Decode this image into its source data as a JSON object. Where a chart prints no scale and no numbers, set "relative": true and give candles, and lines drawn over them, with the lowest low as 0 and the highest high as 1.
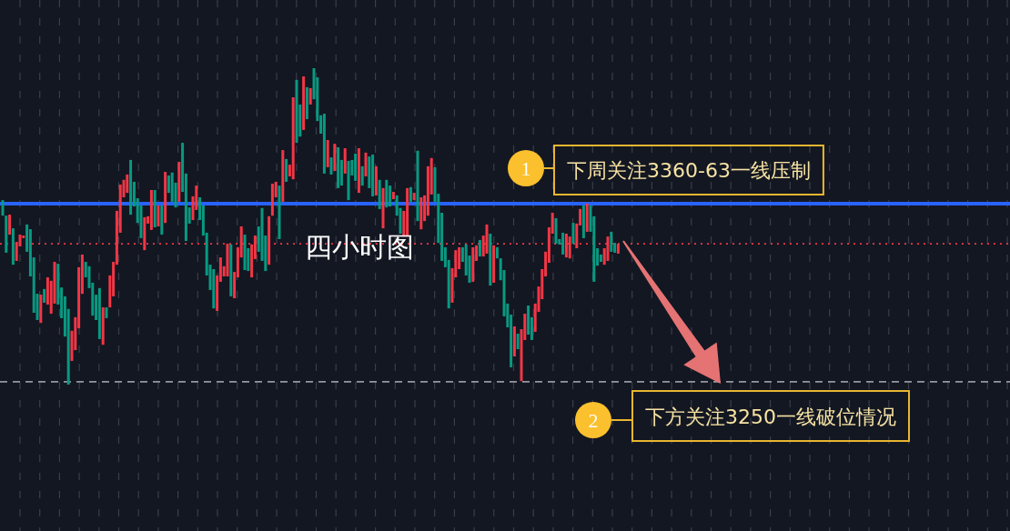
{
  "chart_data": {
    "type": "candlestick",
    "title": "四小时图",
    "relative": true,
    "categories": [
      null,
      null,
      null,
      null,
      null,
      null,
      null,
      null,
      null,
      null,
      null,
      null,
      null,
      null,
      null,
      null,
      null,
      null,
      null,
      null,
      null,
      null,
      null,
      null,
      null,
      null,
      null,
      null,
      null,
      null,
      null,
      null,
      null,
      null,
      null,
      null,
      null,
      null,
      null,
      null,
      null,
      null,
      null,
      null,
      null,
      null,
      null,
      null,
      null,
      null,
      null,
      null,
      null,
      null,
      null,
      null,
      null,
      null,
      null,
      null,
      null,
      null,
      null,
      null,
      null,
      null,
      null,
      null,
      null,
      null,
      null,
      null,
      null,
      null,
      null,
      null,
      null,
      null,
      null,
      null,
      null,
      null,
      null,
      null,
      null,
      null,
      null,
      null,
      null,
      null,
      null,
      null,
      null,
      null,
      null,
      null,
      null,
      null,
      null,
      null,
      null,
      null,
      null,
      null,
      null,
      null,
      null,
      null,
      null,
      null,
      null,
      null,
      null,
      null,
      null,
      null,
      null,
      null,
      null,
      null,
      null,
      null,
      null,
      null,
      null,
      null,
      null,
      null,
      null,
      null,
      null,
      null,
      null,
      null,
      null,
      null,
      null,
      null,
      null,
      null,
      null,
      null,
      null,
      null,
      null,
      null,
      null,
      null,
      null,
      null,
      null,
      null,
      null,
      null,
      null,
      null,
      null,
      null,
      null,
      null,
      null,
      null,
      null,
      null,
      null,
      null,
      null,
      null,
      null,
      null,
      null,
      null,
      null,
      null,
      null,
      null,
      null,
      null,
      null
    ],
    "ohlc": [
      [
        0.583,
        0.583,
        0.534,
        0.534
      ],
      [
        0.534,
        0.534,
        0.417,
        0.417
      ],
      [
        0.474,
        0.537,
        0.474,
        0.537
      ],
      [
        0.494,
        0.494,
        0.379,
        0.379
      ],
      [
        0.391,
        0.451,
        0.391,
        0.451
      ],
      [
        0.437,
        0.474,
        0.437,
        0.474
      ],
      [
        0.463,
        0.471,
        0.463,
        0.471
      ],
      [
        0.506,
        0.506,
        0.42,
        0.42
      ],
      [
        0.491,
        0.491,
        0.342,
        0.342
      ],
      [
        0.402,
        0.402,
        0.227,
        0.227
      ],
      [
        0.287,
        0.287,
        0.204,
        0.204
      ],
      [
        0.195,
        0.284,
        0.195,
        0.284
      ],
      [
        0.302,
        0.302,
        0.259,
        0.259
      ],
      [
        0.253,
        0.339,
        0.253,
        0.339
      ],
      [
        0.224,
        0.328,
        0.224,
        0.328
      ],
      [
        0.256,
        0.388,
        0.256,
        0.388
      ],
      [
        0.382,
        0.382,
        0.253,
        0.253
      ],
      [
        0.307,
        0.307,
        0.21,
        0.21
      ],
      [
        0.279,
        0.279,
        0.152,
        0.152
      ],
      [
        0.239,
        0.239,
        0,
        0
      ],
      [
        0.075,
        0.17,
        0.075,
        0.17
      ],
      [
        0.109,
        0.213,
        0.109,
        0.213
      ],
      [
        0.178,
        0.371,
        0.178,
        0.371
      ],
      [
        0.287,
        0.411,
        0.287,
        0.411
      ],
      [
        0.388,
        0.388,
        0.339,
        0.339
      ],
      [
        0.374,
        0.374,
        0.305,
        0.305
      ],
      [
        0.322,
        0.322,
        0.218,
        0.218
      ],
      [
        0.284,
        0.284,
        0.204,
        0.204
      ],
      [
        0.305,
        0.305,
        0.144,
        0.144
      ],
      [
        0.126,
        0.244,
        0.126,
        0.244
      ],
      [
        0.244,
        0.244,
        0.21,
        0.21
      ],
      [
        0.244,
        0.345,
        0.244,
        0.345
      ],
      [
        0.279,
        0.388,
        0.279,
        0.388
      ],
      [
        0.379,
        0.549,
        0.379,
        0.549
      ],
      [
        0.48,
        0.632,
        0.48,
        0.632
      ],
      [
        0.592,
        0.647,
        0.592,
        0.647
      ],
      [
        0.606,
        0.664,
        0.606,
        0.664
      ],
      [
        0.71,
        0.71,
        0.537,
        0.537
      ],
      [
        0.641,
        0.641,
        0.563,
        0.563
      ],
      [
        0.589,
        0.589,
        0.511,
        0.511
      ],
      [
        0.566,
        0.566,
        0.463,
        0.463
      ],
      [
        0.425,
        0.529,
        0.425,
        0.529
      ],
      [
        0.509,
        0.532,
        0.509,
        0.532
      ],
      [
        0.489,
        0.615,
        0.489,
        0.615
      ],
      [
        0.615,
        0.615,
        0.497,
        0.497
      ],
      [
        0.5,
        0.566,
        0.5,
        0.566
      ],
      [
        0.566,
        0.566,
        0.474,
        0.474
      ],
      [
        0.511,
        0.672,
        0.511,
        0.672
      ],
      [
        0.661,
        0.661,
        0.606,
        0.606
      ],
      [
        0.67,
        0.67,
        0.578,
        0.578
      ],
      [
        0.638,
        0.638,
        0.56,
        0.56
      ],
      [
        0.578,
        0.704,
        0.578,
        0.704
      ],
      [
        0.764,
        0.764,
        0.609,
        0.609
      ],
      [
        0.667,
        0.667,
        0.454,
        0.454
      ],
      [
        0.56,
        0.56,
        0.509,
        0.509
      ],
      [
        0.52,
        0.595,
        0.52,
        0.595
      ],
      [
        0.552,
        0.629,
        0.552,
        0.629
      ],
      [
        0.592,
        0.592,
        0.52,
        0.52
      ],
      [
        0.566,
        0.566,
        0.471,
        0.471
      ],
      [
        0.48,
        0.48,
        0.345,
        0.345
      ],
      [
        0.379,
        0.379,
        0.299,
        0.299
      ],
      [
        0.365,
        0.365,
        0.241,
        0.241
      ],
      [
        0.233,
        0.345,
        0.233,
        0.345
      ],
      [
        0.325,
        0.402,
        0.325,
        0.402
      ],
      [
        0.342,
        0.374,
        0.342,
        0.374
      ],
      [
        0.342,
        0.445,
        0.342,
        0.445
      ],
      [
        0.443,
        0.443,
        0.279,
        0.279
      ],
      [
        0.273,
        0.356,
        0.273,
        0.356
      ],
      [
        0.339,
        0.434,
        0.339,
        0.434
      ],
      [
        0.402,
        0.5,
        0.402,
        0.5
      ],
      [
        0.474,
        0.474,
        0.362,
        0.362
      ],
      [
        0.431,
        0.431,
        0.359,
        0.359
      ],
      [
        0.339,
        0.443,
        0.339,
        0.443
      ],
      [
        0.397,
        0.471,
        0.397,
        0.471
      ],
      [
        0.5,
        0.5,
        0.42,
        0.42
      ],
      [
        0.558,
        0.558,
        0.391,
        0.391
      ],
      [
        0.471,
        0.471,
        0.359,
        0.359
      ],
      [
        0.379,
        0.532,
        0.379,
        0.532
      ],
      [
        0.534,
        0.635,
        0.534,
        0.635
      ],
      [
        0.592,
        0.641,
        0.592,
        0.641
      ],
      [
        0.629,
        0.629,
        0.46,
        0.46
      ],
      [
        0.578,
        0.741,
        0.578,
        0.741
      ],
      [
        0.713,
        0.713,
        0.641,
        0.641
      ],
      [
        0.658,
        0.695,
        0.658,
        0.695
      ],
      [
        0.649,
        0.908,
        0.649,
        0.908
      ],
      [
        0.963,
        0.963,
        0.764,
        0.764
      ],
      [
        0.885,
        0.885,
        0.784,
        0.784
      ],
      [
        0.805,
        0.974,
        0.805,
        0.974
      ],
      [
        0.94,
        0.94,
        0.839,
        0.839
      ],
      [
        0.885,
        0.937,
        0.885,
        0.937
      ],
      [
        1,
        1,
        0.902,
        0.902
      ],
      [
        0.971,
        0.971,
        0.833,
        0.833
      ],
      [
        0.851,
        0.851,
        0.793,
        0.793
      ],
      [
        0.856,
        0.856,
        0.667,
        0.667
      ],
      [
        0.687,
        0.773,
        0.687,
        0.773
      ],
      [
        0.718,
        0.718,
        0.664,
        0.664
      ],
      [
        0.675,
        0.761,
        0.675,
        0.761
      ],
      [
        0.75,
        0.75,
        0.621,
        0.621
      ],
      [
        0.71,
        0.71,
        0.629,
        0.629
      ],
      [
        0.667,
        0.747,
        0.667,
        0.747
      ],
      [
        0.707,
        0.707,
        0.583,
        0.583
      ],
      [
        0.71,
        0.71,
        0.661,
        0.661
      ],
      [
        0.73,
        0.73,
        0.644,
        0.644
      ],
      [
        0.606,
        0.747,
        0.606,
        0.747
      ],
      [
        0.69,
        0.69,
        0.629,
        0.629
      ],
      [
        0.658,
        0.733,
        0.658,
        0.733
      ],
      [
        0.721,
        0.721,
        0.621,
        0.621
      ],
      [
        0.727,
        0.727,
        0.595,
        0.595
      ],
      [
        0.598,
        0.69,
        0.598,
        0.69
      ],
      [
        0.647,
        0.647,
        0.555,
        0.555
      ],
      [
        0.494,
        0.621,
        0.494,
        0.621
      ],
      [
        0.647,
        0.647,
        0.56,
        0.56
      ],
      [
        0.629,
        0.629,
        0.563,
        0.563
      ],
      [
        0.586,
        0.609,
        0.586,
        0.609
      ],
      [
        0.598,
        0.598,
        0.534,
        0.534
      ],
      [
        0.558,
        0.558,
        0.477,
        0.477
      ],
      [
        0.468,
        0.549,
        0.468,
        0.549
      ],
      [
        0.468,
        0.621,
        0.468,
        0.621
      ],
      [
        0.624,
        0.624,
        0.578,
        0.578
      ],
      [
        0.583,
        0.606,
        0.583,
        0.606
      ],
      [
        0.739,
        0.739,
        0.517,
        0.517
      ],
      [
        0.491,
        0.592,
        0.491,
        0.592
      ],
      [
        0.517,
        0.598,
        0.517,
        0.598
      ],
      [
        0.534,
        0.69,
        0.534,
        0.69
      ],
      [
        0.601,
        0.716,
        0.601,
        0.716
      ],
      [
        0.687,
        0.687,
        0.578,
        0.578
      ],
      [
        0.603,
        0.603,
        0.448,
        0.448
      ],
      [
        0.543,
        0.543,
        0.391,
        0.391
      ],
      [
        0.434,
        0.434,
        0.371,
        0.371
      ],
      [
        0.394,
        0.394,
        0.241,
        0.241
      ],
      [
        0.259,
        0.368,
        0.259,
        0.368
      ],
      [
        0.339,
        0.425,
        0.339,
        0.425
      ],
      [
        0.365,
        0.434,
        0.365,
        0.434
      ],
      [
        0.434,
        0.434,
        0.388,
        0.388
      ],
      [
        0.443,
        0.443,
        0.345,
        0.345
      ],
      [
        0.408,
        0.408,
        0.322,
        0.322
      ],
      [
        0.325,
        0.434,
        0.325,
        0.434
      ],
      [
        0.391,
        0.44,
        0.391,
        0.44
      ],
      [
        0.457,
        0.457,
        0.405,
        0.405
      ],
      [
        0.405,
        0.471,
        0.405,
        0.471
      ],
      [
        0.414,
        0.506,
        0.414,
        0.506
      ],
      [
        0.477,
        0.477,
        0.313,
        0.313
      ],
      [
        0.322,
        0.44,
        0.322,
        0.44
      ],
      [
        0.434,
        0.434,
        0.399,
        0.399
      ],
      [
        0.399,
        0.399,
        0.33,
        0.33
      ],
      [
        0.362,
        0.362,
        0.216,
        0.216
      ],
      [
        0.256,
        0.256,
        0.181,
        0.181
      ],
      [
        0.221,
        0.221,
        0.055,
        0.055
      ],
      [
        0.089,
        0.184,
        0.089,
        0.184
      ],
      [
        0.161,
        0.161,
        0.112,
        0.112
      ],
      [
        0.011,
        0.175,
        0.011,
        0.175
      ],
      [
        0.141,
        0.224,
        0.141,
        0.224
      ],
      [
        0.25,
        0.25,
        0.158,
        0.158
      ],
      [
        0.213,
        0.213,
        0.141,
        0.141
      ],
      [
        0.167,
        0.256,
        0.167,
        0.256
      ],
      [
        0.23,
        0.31,
        0.23,
        0.31
      ],
      [
        0.27,
        0.365,
        0.27,
        0.365
      ],
      [
        0.342,
        0.42,
        0.342,
        0.42
      ],
      [
        0.385,
        0.497,
        0.385,
        0.497
      ],
      [
        0.477,
        0.543,
        0.477,
        0.543
      ],
      [
        0.526,
        0.526,
        0.445,
        0.445
      ],
      [
        0.46,
        0.46,
        0.443,
        0.443
      ],
      [
        0.48,
        0.48,
        0.411,
        0.411
      ],
      [
        0.402,
        0.477,
        0.402,
        0.477
      ],
      [
        0.399,
        0.468,
        0.399,
        0.468
      ],
      [
        0.511,
        0.511,
        0.445,
        0.445
      ],
      [
        0.431,
        0.509,
        0.431,
        0.509
      ],
      [
        0.503,
        0.555,
        0.503,
        0.555
      ],
      [
        0.566,
        0.566,
        0.463,
        0.463
      ],
      [
        0.483,
        0.572,
        0.483,
        0.572
      ],
      [
        0.566,
        0.566,
        0.483,
        0.483
      ],
      [
        0.532,
        0.532,
        0.325,
        0.325
      ],
      [
        0.431,
        0.431,
        0.376,
        0.376
      ],
      [
        0.411,
        0.411,
        0.388,
        0.388
      ],
      [
        0.379,
        0.431,
        0.379,
        0.431
      ],
      [
        0.391,
        0.468,
        0.391,
        0.468
      ],
      [
        0.483,
        0.483,
        0.42,
        0.42
      ],
      [
        0.448,
        0.448,
        0.417,
        0.417
      ],
      [
        0.414,
        0.445,
        0.414,
        0.445
      ]
    ],
    "ref_lines": [
      {
        "axis": "y",
        "value": 0.572,
        "color": "#2962ff",
        "line_style": "solid"
      },
      {
        "axis": "y",
        "value": 0.445,
        "color": "#f23645",
        "line_style": "dotted"
      },
      {
        "axis": "y",
        "value": 0.009,
        "color": "#9598a1",
        "line_style": "dashed"
      }
    ],
    "annotations": [
      "1",
      "下周关注3360-63一线压制",
      "2",
      "下方关注3250一线破位情况"
    ]
  }
}
